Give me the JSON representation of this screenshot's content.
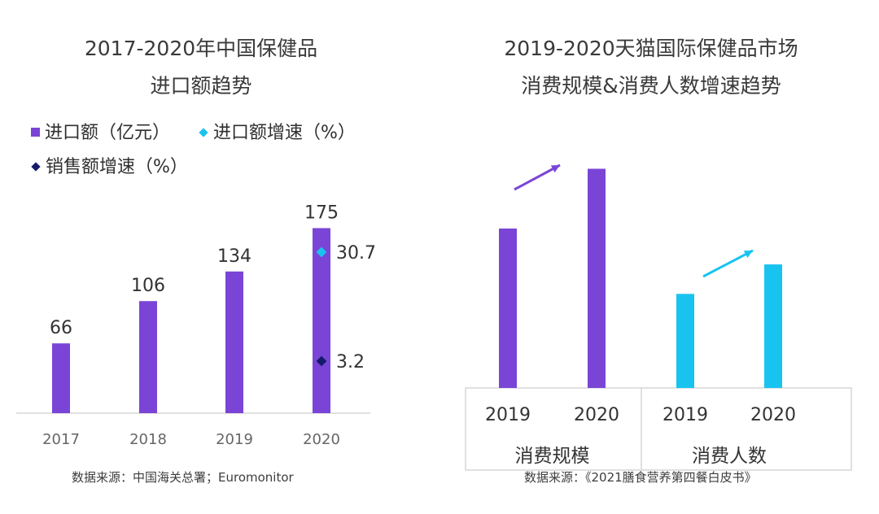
{
  "chart_data": [
    {
      "type": "bar",
      "title": "2017-2020年中国保健品\n进口额趋势",
      "title_lines": [
        "2017-2020年中国保健品",
        "进口额趋势"
      ],
      "categories": [
        "2017",
        "2018",
        "2019",
        "2020"
      ],
      "series": [
        {
          "name": "进口额（亿元）",
          "values": [
            66,
            106,
            134,
            175
          ],
          "color": "#7a45d6",
          "marker": "square"
        },
        {
          "name": "进口额增速（%）",
          "values": [
            null,
            null,
            null,
            30.7
          ],
          "color": "#19c3f0",
          "marker": "diamond"
        },
        {
          "name": "销售额增速（%）",
          "values": [
            null,
            null,
            null,
            3.2
          ],
          "color": "#151a6b",
          "marker": "diamond"
        }
      ],
      "data_labels": [
        "66",
        "106",
        "134",
        "175"
      ],
      "point_labels": [
        "30.7",
        "3.2"
      ],
      "ylim": [
        0,
        200
      ],
      "grid": false,
      "legend_placement": "top-left",
      "source": "数据来源：中国海关总署；Euromonitor"
    },
    {
      "type": "bar",
      "title": "2019-2020天猫国际保健品市场\n消费规模&消费人数增速趋势",
      "title_lines": [
        "2019-2020天猫国际保健品市场",
        "消费规模&消费人数增速趋势"
      ],
      "groups": [
        {
          "label": "消费规模",
          "categories": [
            "2019",
            "2020"
          ],
          "values": [
            2.0,
            2.75
          ],
          "color": "#7a45d6",
          "trend": "up"
        },
        {
          "label": "消费人数",
          "categories": [
            "2019",
            "2020"
          ],
          "values": [
            1.18,
            1.55
          ],
          "color": "#19c3f0",
          "trend": "up"
        }
      ],
      "grid": false,
      "source": "数据来源：《2021膳食营养第四餐白皮书》"
    }
  ]
}
